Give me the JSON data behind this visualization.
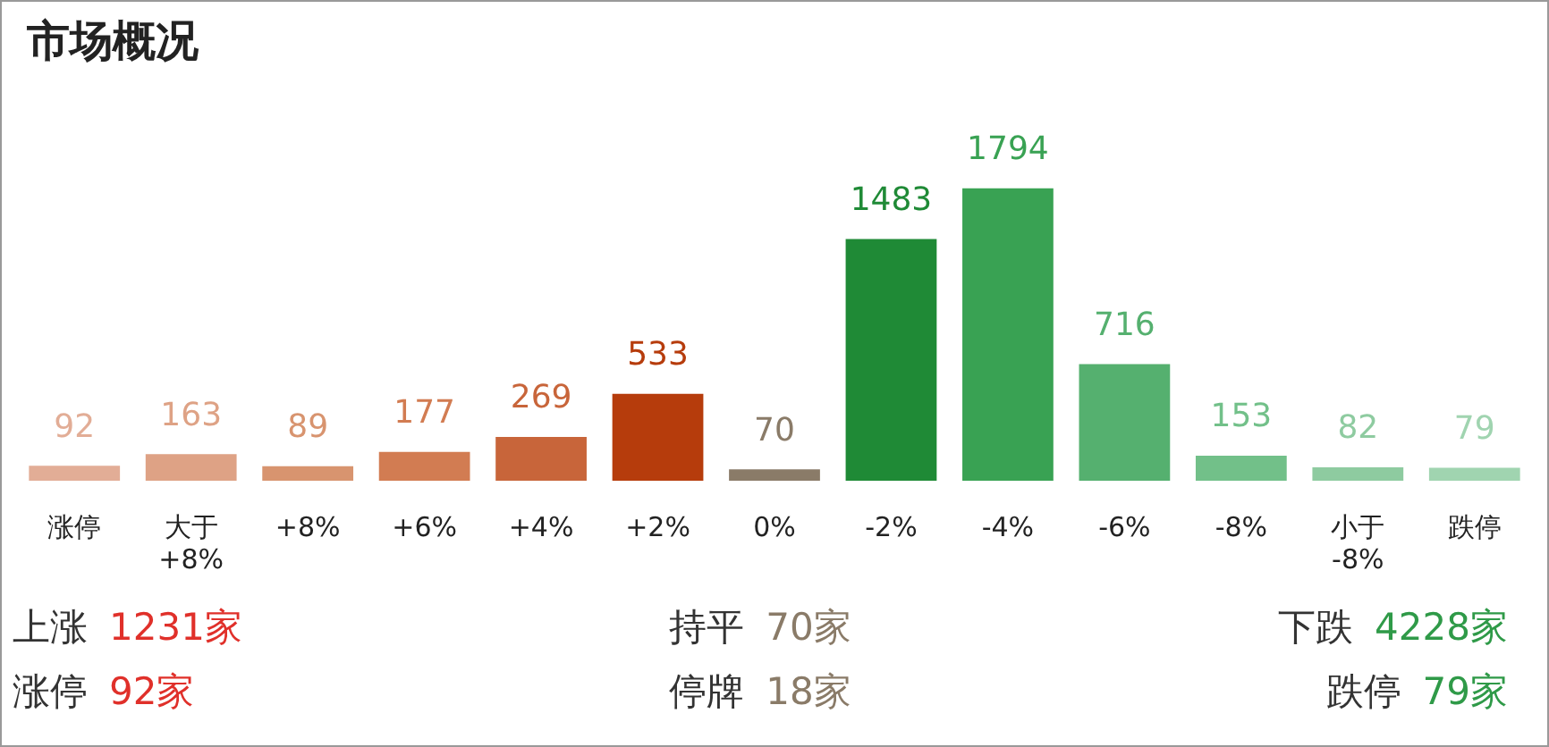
{
  "chart_data": {
    "type": "bar",
    "title": "市场概况",
    "categories": [
      "涨停",
      "大于 +8%",
      "+8%",
      "+6%",
      "+4%",
      "+2%",
      "0%",
      "-2%",
      "-4%",
      "-6%",
      "-8%",
      "小于 -8%",
      "跌停"
    ],
    "values": [
      92,
      163,
      89,
      177,
      269,
      533,
      70,
      1483,
      1794,
      716,
      153,
      82,
      79
    ],
    "colors": [
      "#e2ad96",
      "#dea285",
      "#d8946f",
      "#d27c52",
      "#c8653a",
      "#b63c0c",
      "#8a7b68",
      "#1f8a36",
      "#39a253",
      "#55b06f",
      "#72c089",
      "#8ecba0",
      "#a0d4b0"
    ],
    "data_labels": true,
    "grid": false,
    "legend": false,
    "annotations": [
      "上涨 1231家",
      "持平 70家",
      "下跌 4228家",
      "涨停 92家",
      "停牌 18家",
      "跌停 79家"
    ]
  }
}
